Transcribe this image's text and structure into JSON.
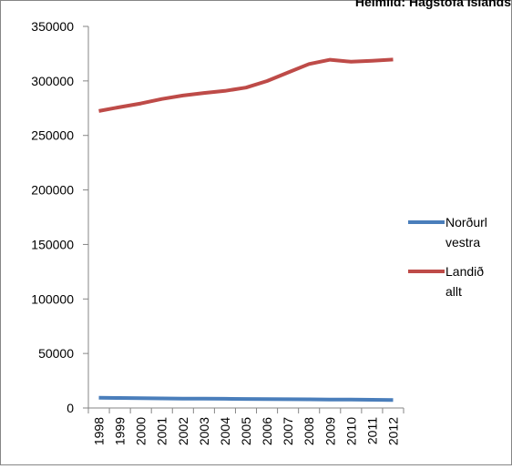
{
  "source_note": "Heimild: Hagstofa Íslands",
  "chart_data": {
    "type": "line",
    "title": "",
    "xlabel": "",
    "ylabel": "",
    "categories": [
      "1998",
      "1999",
      "2000",
      "2001",
      "2002",
      "2003",
      "2004",
      "2005",
      "2006",
      "2007",
      "2008",
      "2009",
      "2010",
      "2011",
      "2012"
    ],
    "ylim": [
      0,
      350000
    ],
    "yticks": [
      0,
      50000,
      100000,
      150000,
      200000,
      250000,
      300000,
      350000
    ],
    "ytick_labels": [
      "0",
      "50000",
      "100000",
      "150000",
      "200000",
      "250000",
      "300000",
      "350000"
    ],
    "grid": false,
    "legend_position": "right",
    "series": [
      {
        "name": "Norðurl vestra",
        "name_lines": [
          "Norðurl",
          "vestra"
        ],
        "color": "#4a7ebb",
        "values": [
          9450,
          9200,
          8950,
          8750,
          8600,
          8500,
          8450,
          8300,
          8200,
          8050,
          7950,
          7800,
          7750,
          7550,
          7300
        ]
      },
      {
        "name": "Landið allt",
        "name_lines": [
          "Landið",
          "allt"
        ],
        "color": "#be4b48",
        "values": [
          272400,
          276000,
          279300,
          283400,
          286600,
          288900,
          290900,
          293900,
          299900,
          307700,
          315500,
          319400,
          317600,
          318500,
          319600
        ]
      }
    ]
  }
}
